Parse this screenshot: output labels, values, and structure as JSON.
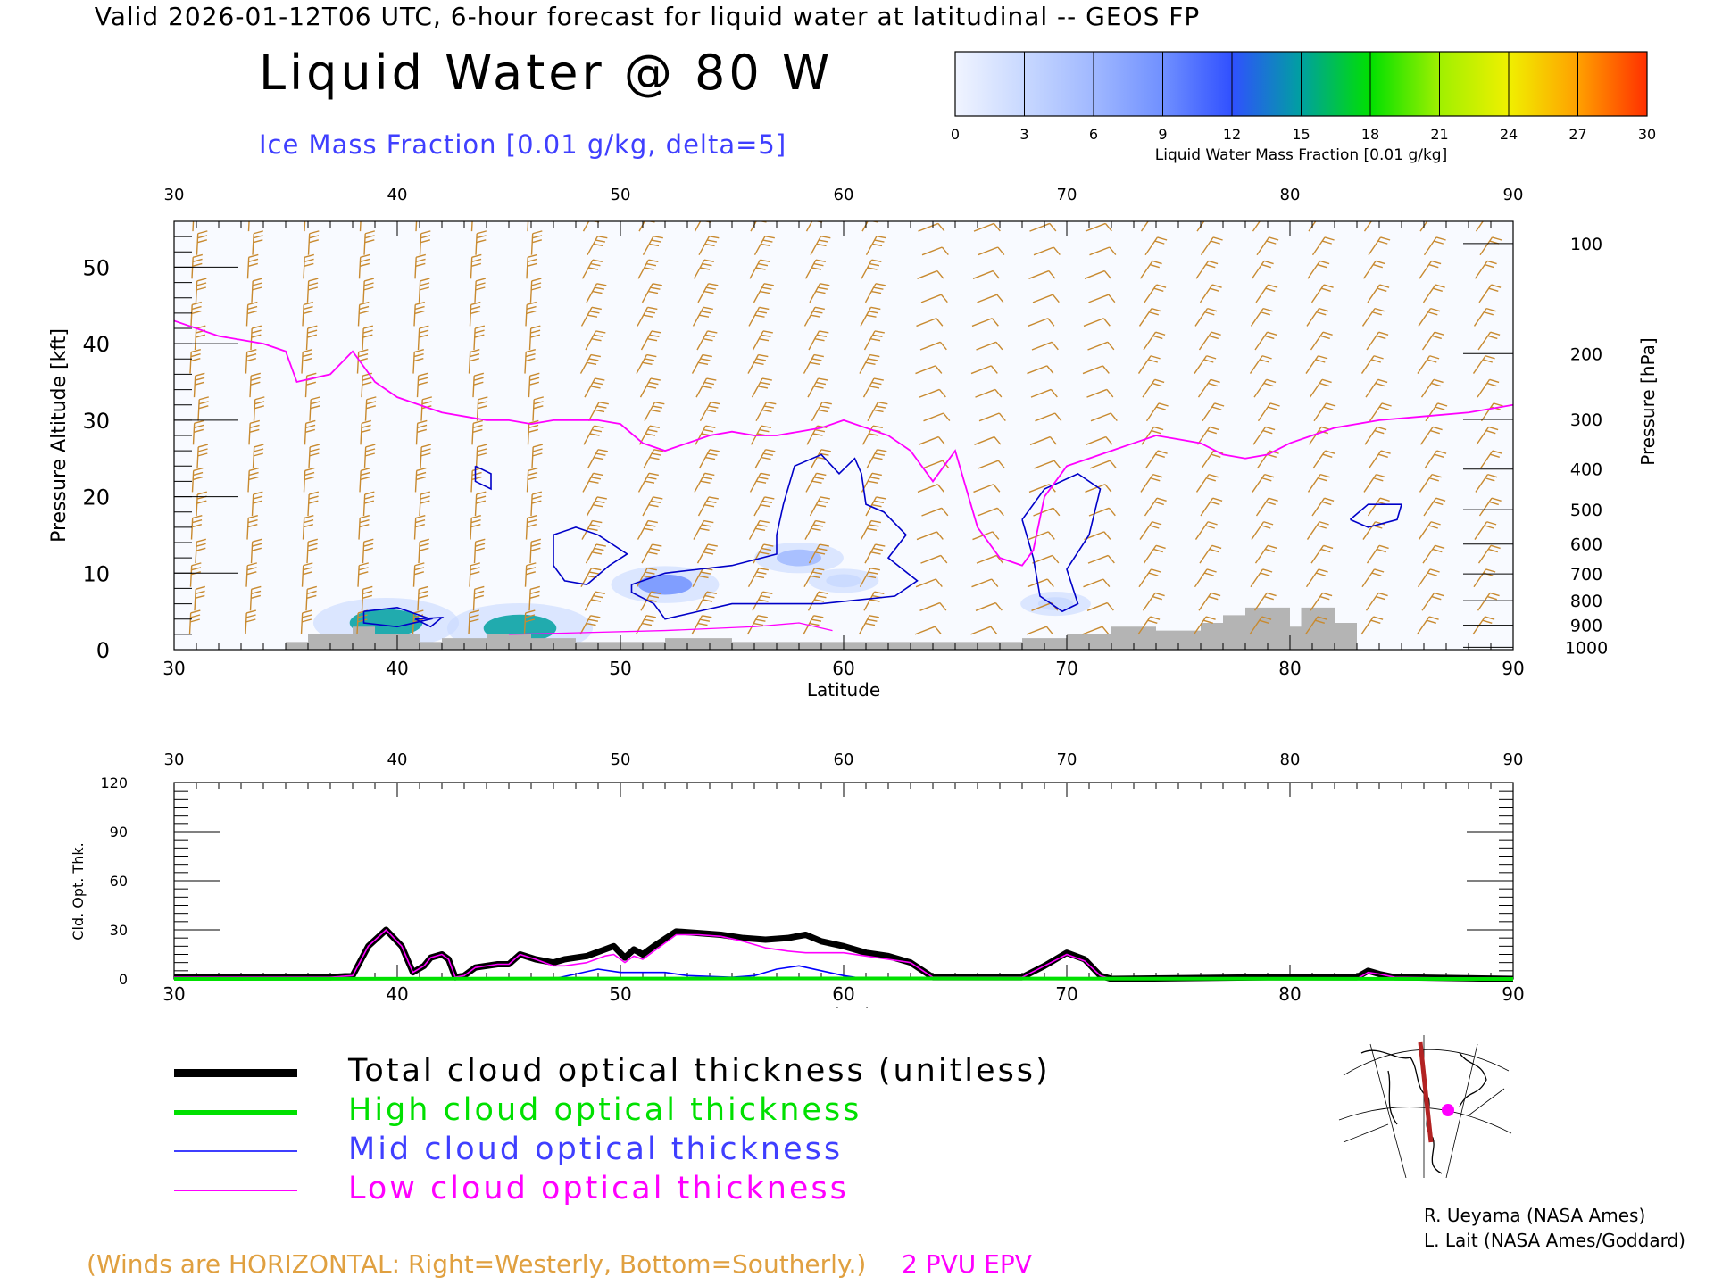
{
  "header": {
    "title": "Valid 2026-01-12T06 UTC, 6-hour forecast for liquid water at latitudinal -- GEOS FP",
    "main_title": "Liquid Water @ 80 W",
    "subtitle": "Ice Mass Fraction [0.01 g/kg, delta=5]"
  },
  "colorbar": {
    "label": "Liquid Water Mass Fraction [0.01 g/kg]",
    "ticks": [
      "0",
      "3",
      "6",
      "9",
      "12",
      "15",
      "18",
      "21",
      "24",
      "27",
      "30"
    ],
    "colors": [
      "#f0f4ff",
      "#c8d8ff",
      "#a0b8ff",
      "#7090ff",
      "#3050ff",
      "#00a0a0",
      "#00e000",
      "#a0f000",
      "#f0f000",
      "#ffa000",
      "#ff3000"
    ]
  },
  "chart_data": [
    {
      "type": "contour",
      "name": "cross-section",
      "xlabel": "Latitude",
      "ylabel_left": "Pressure Altitude [kft]",
      "ylabel_right": "Pressure [hPa]",
      "xlim": [
        30,
        90
      ],
      "ylim": [
        0,
        56
      ],
      "x_ticks": [
        "30",
        "40",
        "50",
        "60",
        "70",
        "80",
        "90"
      ],
      "top_x_ticks": [
        "30",
        "40",
        "50",
        "60",
        "70",
        "80",
        "90"
      ],
      "y_ticks": [
        "0",
        "10",
        "20",
        "30",
        "40",
        "50"
      ],
      "pressure_ticks": [
        {
          "label": "100",
          "kft": 53.1
        },
        {
          "label": "200",
          "kft": 38.7
        },
        {
          "label": "300",
          "kft": 30.1
        },
        {
          "label": "400",
          "kft": 23.6
        },
        {
          "label": "500",
          "kft": 18.3
        },
        {
          "label": "600",
          "kft": 13.8
        },
        {
          "label": "700",
          "kft": 9.9
        },
        {
          "label": "800",
          "kft": 6.4
        },
        {
          "label": "900",
          "kft": 3.2
        },
        {
          "label": "1000",
          "kft": 0.3
        }
      ],
      "epv_2pvu": [
        [
          30,
          43
        ],
        [
          32,
          41
        ],
        [
          34,
          40
        ],
        [
          35,
          39
        ],
        [
          35.5,
          35
        ],
        [
          37,
          36
        ],
        [
          38,
          39
        ],
        [
          39,
          35
        ],
        [
          40,
          33
        ],
        [
          41,
          32
        ],
        [
          42,
          31
        ],
        [
          43,
          30.5
        ],
        [
          44,
          30
        ],
        [
          45,
          30
        ],
        [
          46,
          29.5
        ],
        [
          47,
          30
        ],
        [
          48,
          30
        ],
        [
          49,
          30
        ],
        [
          50,
          29.5
        ],
        [
          51,
          27
        ],
        [
          52,
          26
        ],
        [
          53,
          27
        ],
        [
          54,
          28
        ],
        [
          55,
          28.5
        ],
        [
          56,
          28
        ],
        [
          57,
          28
        ],
        [
          58,
          28.5
        ],
        [
          59,
          29
        ],
        [
          60,
          30
        ],
        [
          61,
          29
        ],
        [
          62,
          28
        ],
        [
          63,
          26
        ],
        [
          64,
          22
        ],
        [
          64.5,
          24
        ],
        [
          65,
          26
        ],
        [
          65.5,
          21
        ],
        [
          66,
          16
        ],
        [
          67,
          12
        ],
        [
          68,
          11
        ],
        [
          68.5,
          13
        ],
        [
          69,
          20
        ],
        [
          70,
          24
        ],
        [
          71,
          25
        ],
        [
          72,
          26
        ],
        [
          73,
          27
        ],
        [
          74,
          28
        ],
        [
          75,
          27.5
        ],
        [
          76,
          27
        ],
        [
          77,
          25.5
        ],
        [
          78,
          25
        ],
        [
          79,
          25.5
        ],
        [
          80,
          27
        ],
        [
          81,
          28
        ],
        [
          82,
          29
        ],
        [
          83,
          29.5
        ],
        [
          84,
          30
        ],
        [
          86,
          30.5
        ],
        [
          88,
          31
        ],
        [
          90,
          32
        ]
      ],
      "ice_contours": [
        [
          [
            38.5,
            5
          ],
          [
            40,
            5.5
          ],
          [
            41.5,
            4
          ],
          [
            40,
            3
          ],
          [
            38.5,
            3.5
          ],
          [
            38.5,
            5
          ]
        ],
        [
          [
            40.8,
            4
          ],
          [
            42,
            4.2
          ],
          [
            41.5,
            3
          ],
          [
            40.8,
            4
          ]
        ],
        [
          [
            43.5,
            24
          ],
          [
            44.2,
            23
          ],
          [
            44.2,
            21
          ],
          [
            43.5,
            22
          ],
          [
            43.5,
            24
          ]
        ],
        [
          [
            47,
            15
          ],
          [
            48,
            16
          ],
          [
            49,
            15
          ],
          [
            50.3,
            12.5
          ],
          [
            49.5,
            11
          ],
          [
            48.5,
            8.5
          ],
          [
            47.5,
            9
          ],
          [
            47,
            11
          ],
          [
            47,
            15
          ]
        ],
        [
          [
            50.5,
            8.5
          ],
          [
            52,
            10
          ],
          [
            53.5,
            10.5
          ],
          [
            55,
            11
          ],
          [
            57,
            12.5
          ],
          [
            57,
            15
          ],
          [
            57.3,
            19
          ],
          [
            57.8,
            24
          ],
          [
            59,
            25.5
          ],
          [
            59.8,
            23
          ],
          [
            60.5,
            25
          ],
          [
            60.8,
            23
          ],
          [
            61,
            19
          ],
          [
            61.8,
            18
          ],
          [
            62.8,
            15
          ],
          [
            62,
            12
          ],
          [
            63.3,
            9
          ],
          [
            62.3,
            7
          ],
          [
            59,
            6
          ],
          [
            55,
            6
          ],
          [
            53.5,
            5
          ],
          [
            52,
            4
          ],
          [
            51.5,
            6
          ],
          [
            50.5,
            7.5
          ],
          [
            50.5,
            8.5
          ]
        ],
        [
          [
            68,
            17
          ],
          [
            69,
            21
          ],
          [
            70.5,
            23
          ],
          [
            71.5,
            21
          ],
          [
            71,
            15
          ],
          [
            70,
            10.5
          ],
          [
            70.5,
            6
          ],
          [
            69.8,
            5
          ],
          [
            68.8,
            7
          ],
          [
            68.5,
            12
          ],
          [
            68,
            17
          ]
        ],
        [
          [
            82.7,
            17
          ],
          [
            83.5,
            19
          ],
          [
            85,
            19
          ],
          [
            84.8,
            17
          ],
          [
            83.5,
            16
          ],
          [
            82.7,
            17
          ]
        ]
      ],
      "liquid_cells": [
        {
          "lat": 39.5,
          "kft": 3.5,
          "value": 15
        },
        {
          "lat": 45.5,
          "kft": 2.8,
          "value": 15
        },
        {
          "lat": 52,
          "kft": 8.5,
          "value": 9
        },
        {
          "lat": 58,
          "kft": 12,
          "value": 6
        },
        {
          "lat": 60,
          "kft": 9,
          "value": 3
        },
        {
          "lat": 69.5,
          "kft": 6,
          "value": 3
        }
      ]
    },
    {
      "type": "line",
      "name": "cloud-optical-thickness",
      "xlabel": "Latitude",
      "ylabel": "Cld. Opt. Thk.",
      "xlim": [
        30,
        90
      ],
      "ylim": [
        0,
        120
      ],
      "x_ticks": [
        "30",
        "40",
        "50",
        "60",
        "70",
        "80",
        "90"
      ],
      "top_x_ticks": [
        "30",
        "40",
        "50",
        "60",
        "70",
        "80",
        "90"
      ],
      "y_ticks": [
        "0",
        "30",
        "60",
        "90",
        "120"
      ],
      "series": [
        {
          "name": "Total cloud optical thickness (unitless)",
          "color": "#000000",
          "points": [
            [
              30,
              1
            ],
            [
              37,
              1
            ],
            [
              38,
              2
            ],
            [
              38.7,
              20
            ],
            [
              39.5,
              30
            ],
            [
              40.2,
              20
            ],
            [
              40.7,
              4
            ],
            [
              41.2,
              8
            ],
            [
              41.5,
              13
            ],
            [
              42,
              15
            ],
            [
              42.3,
              12
            ],
            [
              42.6,
              1
            ],
            [
              43,
              2
            ],
            [
              43.5,
              7
            ],
            [
              44.5,
              9
            ],
            [
              45,
              9
            ],
            [
              45.5,
              15
            ],
            [
              46.2,
              12
            ],
            [
              47,
              10
            ],
            [
              47.5,
              12
            ],
            [
              48.5,
              14
            ],
            [
              49.3,
              18
            ],
            [
              49.7,
              20
            ],
            [
              50.2,
              13
            ],
            [
              50.6,
              18
            ],
            [
              51,
              15
            ],
            [
              51.5,
              20
            ],
            [
              52.5,
              29
            ],
            [
              53.5,
              28
            ],
            [
              54.5,
              27
            ],
            [
              55.5,
              25
            ],
            [
              56.5,
              24
            ],
            [
              57.5,
              25
            ],
            [
              58.3,
              27
            ],
            [
              59,
              23
            ],
            [
              60,
              20
            ],
            [
              61,
              16
            ],
            [
              62,
              14
            ],
            [
              63,
              10
            ],
            [
              64,
              1
            ],
            [
              68,
              1
            ],
            [
              69,
              8
            ],
            [
              70,
              16
            ],
            [
              70.8,
              12
            ],
            [
              71.5,
              2
            ],
            [
              72,
              0
            ],
            [
              79,
              1
            ],
            [
              83,
              1
            ],
            [
              83.5,
              5
            ],
            [
              84,
              3
            ],
            [
              84.7,
              1
            ],
            [
              90,
              0
            ]
          ]
        },
        {
          "name": "High cloud optical thickness",
          "color": "#00e000",
          "points": [
            [
              30,
              0
            ],
            [
              60,
              0.3
            ],
            [
              90,
              0
            ]
          ]
        },
        {
          "name": "Mid cloud optical thickness",
          "color": "#0000ff",
          "points": [
            [
              30,
              0
            ],
            [
              47,
              0
            ],
            [
              48,
              3
            ],
            [
              49,
              6
            ],
            [
              50,
              4
            ],
            [
              52,
              4
            ],
            [
              53,
              2
            ],
            [
              55,
              1
            ],
            [
              56,
              2
            ],
            [
              57,
              6
            ],
            [
              58,
              8
            ],
            [
              59,
              5
            ],
            [
              60,
              2
            ],
            [
              61,
              0
            ],
            [
              90,
              0
            ]
          ]
        },
        {
          "name": "Low cloud optical thickness",
          "color": "#ff00ff",
          "points": [
            [
              30,
              1
            ],
            [
              37,
              1
            ],
            [
              38,
              2
            ],
            [
              38.7,
              20
            ],
            [
              39.5,
              30
            ],
            [
              40.2,
              20
            ],
            [
              40.7,
              4
            ],
            [
              41.2,
              8
            ],
            [
              41.5,
              13
            ],
            [
              42,
              15
            ],
            [
              42.3,
              12
            ],
            [
              42.6,
              1
            ],
            [
              43,
              2
            ],
            [
              43.5,
              7
            ],
            [
              44.5,
              9
            ],
            [
              45,
              9
            ],
            [
              45.5,
              15
            ],
            [
              46.2,
              12
            ],
            [
              47,
              8
            ],
            [
              47.5,
              8
            ],
            [
              48.5,
              10
            ],
            [
              49.3,
              14
            ],
            [
              49.7,
              15
            ],
            [
              50.2,
              10
            ],
            [
              50.6,
              14
            ],
            [
              51,
              12
            ],
            [
              51.5,
              17
            ],
            [
              52.5,
              27
            ],
            [
              53.5,
              27
            ],
            [
              54.5,
              26
            ],
            [
              55.5,
              23
            ],
            [
              56.5,
              19
            ],
            [
              57.5,
              17
            ],
            [
              58.3,
              16
            ],
            [
              59,
              16
            ],
            [
              60,
              16
            ],
            [
              61,
              14
            ],
            [
              62,
              12
            ],
            [
              63,
              10
            ],
            [
              64,
              1
            ],
            [
              68,
              1
            ],
            [
              69,
              8
            ],
            [
              70,
              15
            ],
            [
              70.8,
              11
            ],
            [
              71.5,
              2
            ],
            [
              72,
              0
            ],
            [
              83,
              0
            ],
            [
              83.5,
              4
            ],
            [
              84,
              3
            ],
            [
              84.7,
              1
            ],
            [
              90,
              0
            ]
          ]
        }
      ]
    }
  ],
  "legend": [
    {
      "label": "Total cloud optical thickness (unitless)",
      "color": "#000000"
    },
    {
      "label": "High cloud optical thickness",
      "color": "#00e000"
    },
    {
      "label": "Mid cloud optical thickness",
      "color": "#3f3fff"
    },
    {
      "label": "Low cloud optical thickness",
      "color": "#ff00ff"
    }
  ],
  "footer": {
    "wind_note": "(Winds are HORIZONTAL: Right=Westerly, Bottom=Southerly.)",
    "pvu_note": "2 PVU EPV",
    "credit1": "R. Ueyama (NASA Ames)",
    "credit2": "L. Lait (NASA Ames/Goddard)"
  },
  "colors": {
    "wind_barbs": "#c88a30",
    "epv": "#ff00ff",
    "ice": "#0000c8",
    "terrain": "#b4b4b4"
  }
}
